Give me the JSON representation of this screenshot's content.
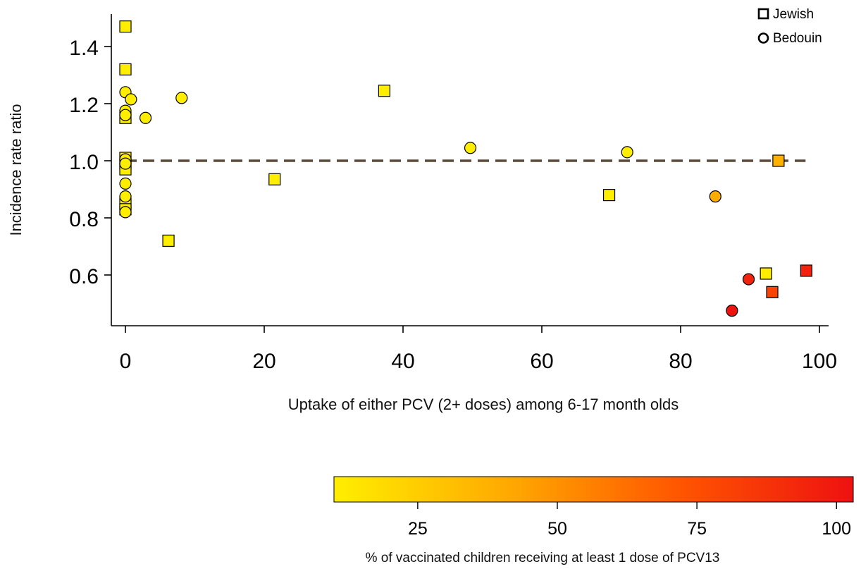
{
  "chart_data": {
    "type": "scatter",
    "title": "",
    "xlabel": "Uptake of either PCV (2+ doses) among 6-17 month olds",
    "ylabel": "Incidence rate ratio",
    "xlim": [
      -2,
      101
    ],
    "ylim": [
      0.44,
      1.5
    ],
    "xticks": [
      0,
      20,
      40,
      60,
      80,
      100
    ],
    "yticks": [
      0.6,
      0.8,
      1.0,
      1.2,
      1.4
    ],
    "xtick_labels": [
      "0",
      "20",
      "40",
      "60",
      "80",
      "100"
    ],
    "ytick_labels": [
      "0.6",
      "0.8",
      "1.0",
      "1.2",
      "1.4"
    ],
    "grid": false,
    "reference_line": {
      "y": 1.0,
      "x_range": [
        0,
        98
      ],
      "style": "dashed",
      "color": "#5a4a3a"
    },
    "legend": {
      "position": "top-right",
      "items": [
        {
          "label": "Jewish",
          "marker": "square"
        },
        {
          "label": "Bedouin",
          "marker": "circle"
        }
      ]
    },
    "colorbar": {
      "label": "% of vaccinated children receiving at least 1 dose of PCV13",
      "range": [
        10,
        103
      ],
      "ticks": [
        25,
        50,
        75,
        100
      ],
      "tick_labels": [
        "25",
        "50",
        "75",
        "100"
      ],
      "colors": [
        "#ffee00",
        "#ffaa00",
        "#ff5500",
        "#ee1111"
      ]
    },
    "series": [
      {
        "name": "Jewish",
        "marker": "square",
        "points": [
          {
            "x": 0,
            "y": 1.47,
            "pcv13": 10
          },
          {
            "x": 0,
            "y": 1.32,
            "pcv13": 10
          },
          {
            "x": 0,
            "y": 1.15,
            "pcv13": 10
          },
          {
            "x": 0,
            "y": 1.01,
            "pcv13": 10
          },
          {
            "x": 0,
            "y": 0.99,
            "pcv13": 10
          },
          {
            "x": 0,
            "y": 0.97,
            "pcv13": 10
          },
          {
            "x": 0,
            "y": 0.85,
            "pcv13": 10
          },
          {
            "x": 0,
            "y": 0.83,
            "pcv13": 10
          },
          {
            "x": 6.2,
            "y": 0.72,
            "pcv13": 10
          },
          {
            "x": 21.5,
            "y": 0.935,
            "pcv13": 10
          },
          {
            "x": 37.3,
            "y": 1.245,
            "pcv13": 10
          },
          {
            "x": 69.7,
            "y": 0.88,
            "pcv13": 10
          },
          {
            "x": 92.3,
            "y": 0.605,
            "pcv13": 10
          },
          {
            "x": 93.2,
            "y": 0.54,
            "pcv13": 80
          },
          {
            "x": 94.1,
            "y": 1.0,
            "pcv13": 38
          },
          {
            "x": 98.1,
            "y": 0.615,
            "pcv13": 95
          }
        ]
      },
      {
        "name": "Bedouin",
        "marker": "circle",
        "points": [
          {
            "x": 0,
            "y": 1.24,
            "pcv13": 10
          },
          {
            "x": 0,
            "y": 1.175,
            "pcv13": 10
          },
          {
            "x": 0,
            "y": 1.16,
            "pcv13": 10
          },
          {
            "x": 0,
            "y": 1.005,
            "pcv13": 10
          },
          {
            "x": 0,
            "y": 0.99,
            "pcv13": 10
          },
          {
            "x": 0,
            "y": 0.92,
            "pcv13": 10
          },
          {
            "x": 0,
            "y": 0.875,
            "pcv13": 10
          },
          {
            "x": 0,
            "y": 0.82,
            "pcv13": 10
          },
          {
            "x": 0.8,
            "y": 1.215,
            "pcv13": 10
          },
          {
            "x": 2.9,
            "y": 1.15,
            "pcv13": 10
          },
          {
            "x": 8.1,
            "y": 1.22,
            "pcv13": 10
          },
          {
            "x": 49.7,
            "y": 1.045,
            "pcv13": 10
          },
          {
            "x": 72.3,
            "y": 1.03,
            "pcv13": 10
          },
          {
            "x": 85.0,
            "y": 0.875,
            "pcv13": 40
          },
          {
            "x": 87.4,
            "y": 0.475,
            "pcv13": 102
          },
          {
            "x": 89.8,
            "y": 0.585,
            "pcv13": 95
          }
        ]
      }
    ]
  }
}
